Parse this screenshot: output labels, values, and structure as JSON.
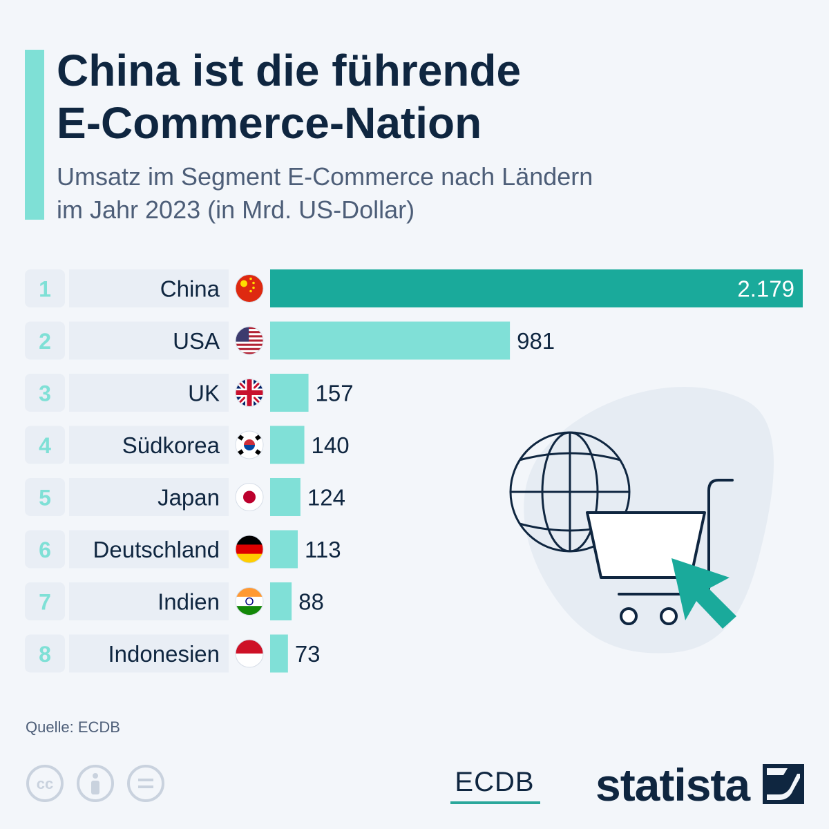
{
  "header": {
    "title_line1": "China ist die führende",
    "title_line2": "E-Commerce-Nation",
    "subtitle_line1": "Umsatz im Segment E-Commerce nach Ländern",
    "subtitle_line2": "im Jahr 2023 (in Mrd. US-Dollar)"
  },
  "chart_data": {
    "type": "bar",
    "orientation": "horizontal",
    "title": "China ist die führende E-Commerce-Nation",
    "subtitle": "Umsatz im Segment E-Commerce nach Ländern im Jahr 2023 (in Mrd. US-Dollar)",
    "ranks": [
      "1",
      "2",
      "3",
      "4",
      "5",
      "6",
      "7",
      "8"
    ],
    "categories": [
      "China",
      "USA",
      "UK",
      "Südkorea",
      "Japan",
      "Deutschland",
      "Indien",
      "Indonesien"
    ],
    "values": [
      2179,
      981,
      157,
      140,
      124,
      113,
      88,
      73
    ],
    "value_labels": [
      "2.179",
      "981",
      "157",
      "140",
      "124",
      "113",
      "88",
      "73"
    ],
    "flags": [
      "china-flag-icon",
      "usa-flag-icon",
      "uk-flag-icon",
      "south-korea-flag-icon",
      "japan-flag-icon",
      "germany-flag-icon",
      "india-flag-icon",
      "indonesia-flag-icon"
    ],
    "xlim": [
      0,
      2179
    ],
    "grid": false,
    "legend": "none",
    "colors": {
      "highlight_bar": "#1aaa9b",
      "bar": "#80e0d7",
      "rank_text": "#7fe0d6",
      "label_bg": "#e9eef5",
      "text": "#0f2640"
    }
  },
  "footer": {
    "source": "Quelle: ECDB",
    "partner_logo": "ECDB",
    "brand": "statista",
    "license_icons": [
      "cc-icon",
      "by-attribution-icon",
      "no-derivatives-icon"
    ]
  },
  "illustration": {
    "icons": [
      "globe-icon",
      "shopping-cart-icon",
      "cursor-arrow-icon"
    ]
  }
}
